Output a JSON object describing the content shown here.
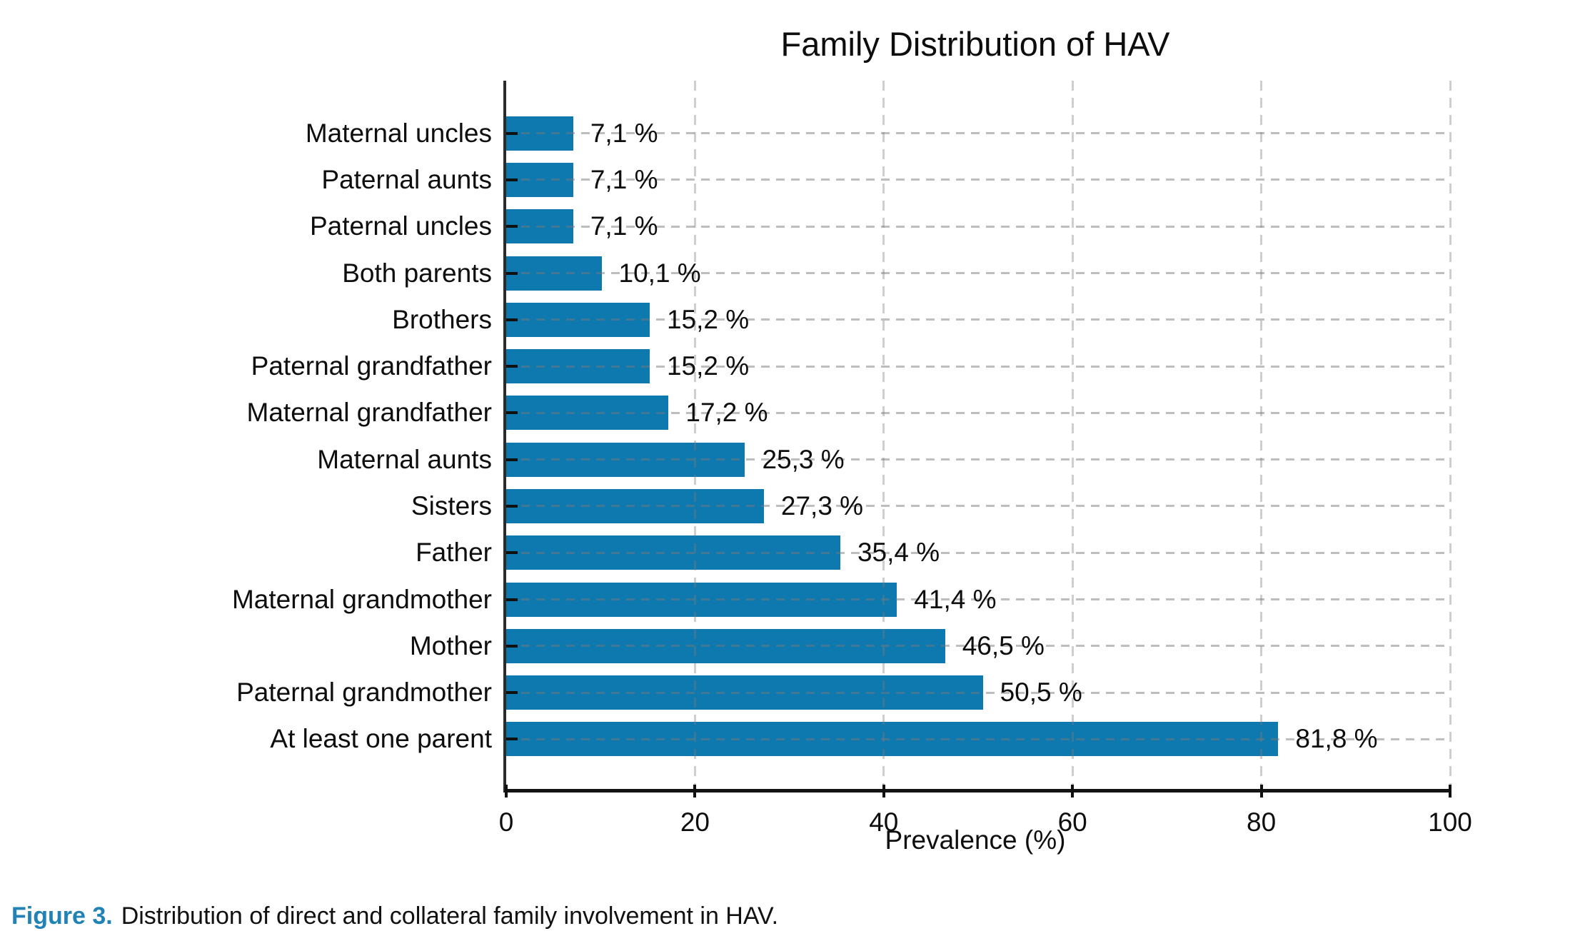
{
  "figure": {
    "caption": {
      "label": "Figure 3.",
      "text": "Distribution of direct and collateral family involvement in HAV."
    }
  },
  "colors": {
    "bar": "#0D79AF",
    "caption_accent": "#2183B5",
    "axis_bottom": "#141414",
    "axis_left": "#2B2B2B",
    "grid": "#C6C6C6",
    "text": "#111111",
    "background": "#FFFFFF"
  },
  "chart_data": {
    "type": "bar",
    "orientation": "horizontal",
    "title": "Family Distribution of HAV",
    "xlabel": "Prevalence (%)",
    "ylabel": "",
    "xlim": [
      0,
      100
    ],
    "xticks": [
      0,
      20,
      40,
      60,
      80,
      100
    ],
    "grid": "dashed gridlines on both axes, drawn over bars",
    "legend": "none",
    "value_label_position": "right of bar end",
    "categories_top_to_bottom": [
      "Maternal uncles",
      "Paternal aunts",
      "Paternal uncles",
      "Both parents",
      "Brothers",
      "Paternal grandfather",
      "Maternal grandfather",
      "Maternal aunts",
      "Sisters",
      "Father",
      "Maternal grandmother",
      "Mother",
      "Paternal grandmother",
      "At least one parent"
    ],
    "values": [
      7.1,
      7.1,
      7.1,
      10.1,
      15.2,
      15.2,
      17.2,
      25.3,
      27.3,
      35.4,
      41.4,
      46.5,
      50.5,
      81.8
    ],
    "value_labels": [
      "7,1 %",
      "7,1 %",
      "7,1 %",
      "10,1 %",
      "15,2 %",
      "15,2 %",
      "17,2 %",
      "25,3 %",
      "27,3 %",
      "35,4 %",
      "41,4 %",
      "46,5 %",
      "50,5 %",
      "81,8 %"
    ]
  }
}
